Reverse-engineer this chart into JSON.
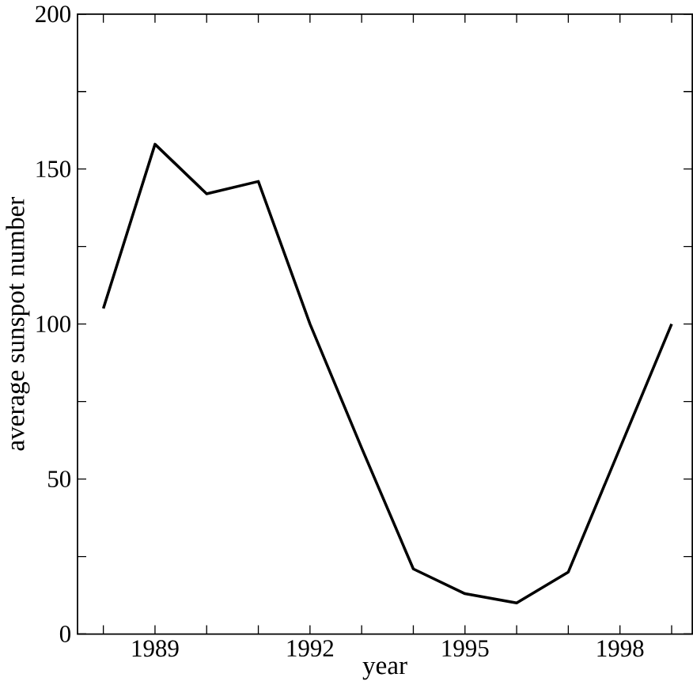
{
  "chart_data": {
    "type": "line",
    "xlabel": "year",
    "ylabel": "average sunspot number",
    "x": [
      1988,
      1989,
      1990,
      1991,
      1992,
      1993,
      1994,
      1995,
      1996,
      1997,
      1998,
      1999
    ],
    "series": [
      {
        "color": "#000000",
        "values": [
          105,
          158,
          142,
          146,
          100,
          60,
          21,
          13,
          10,
          20,
          60,
          100
        ]
      }
    ],
    "xlim": [
      1987.5,
      1999.4
    ],
    "xticks": [
      {
        "value": 1988,
        "label": null
      },
      1989,
      {
        "value": 1990,
        "label": null
      },
      {
        "value": 1991,
        "label": null
      },
      1992,
      {
        "value": 1993,
        "label": null
      },
      {
        "value": 1994,
        "label": null
      },
      1995,
      {
        "value": 1996,
        "label": null
      },
      {
        "value": 1997,
        "label": null
      },
      1998,
      {
        "value": 1999,
        "label": null
      }
    ],
    "ylim": [
      0,
      200
    ],
    "yticks": [
      0,
      {
        "value": 25,
        "label": null
      },
      50,
      {
        "value": 75,
        "label": null
      },
      100,
      {
        "value": 125,
        "label": null
      },
      150,
      {
        "value": 175,
        "label": null
      },
      200
    ],
    "marker": "none",
    "line_style": "solid"
  }
}
